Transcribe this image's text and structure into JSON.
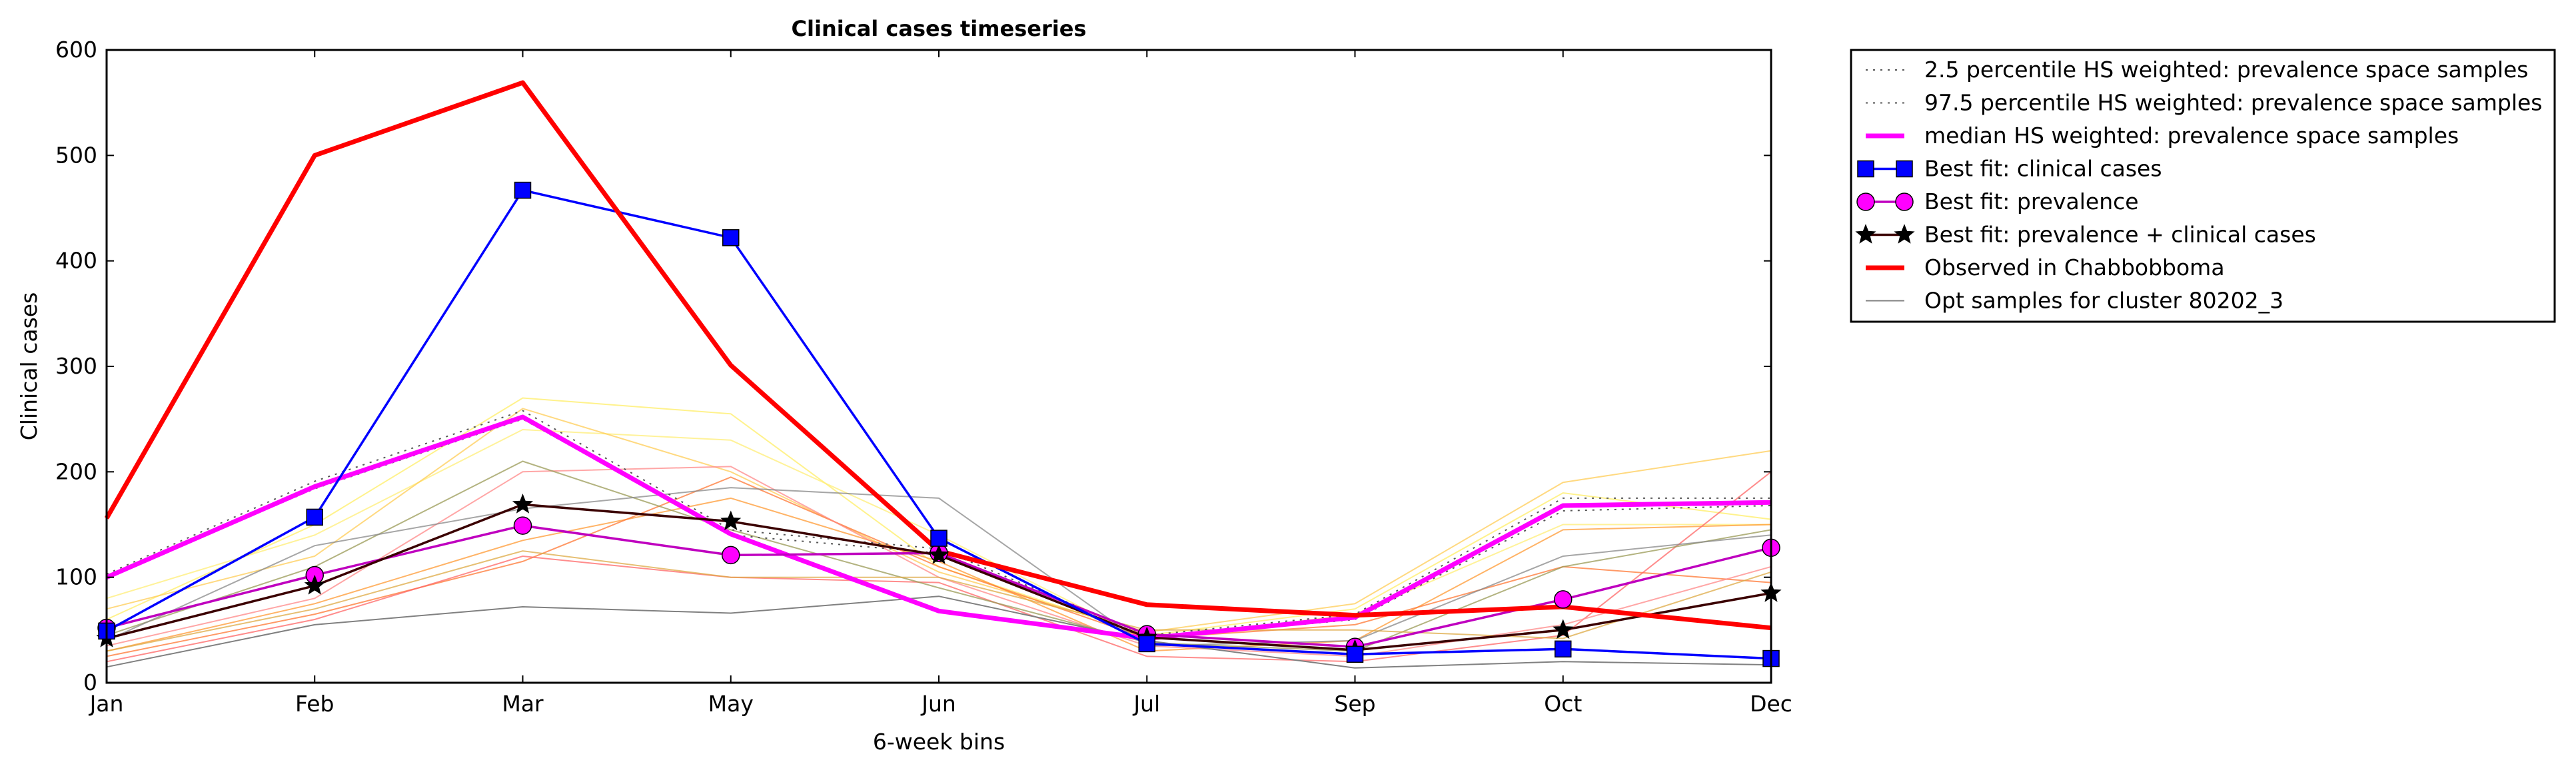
{
  "chart_data": {
    "type": "line",
    "title": "Clinical cases timeseries",
    "xlabel": "6-week bins",
    "ylabel": "Clinical cases",
    "x_ticks": [
      "Jan",
      "Feb",
      "Mar",
      "May",
      "Jun",
      "Jul",
      "Sep",
      "Oct",
      "Dec"
    ],
    "y_ticks": [
      0,
      100,
      200,
      300,
      400,
      500,
      600
    ],
    "ylim": [
      0,
      600
    ],
    "grid": false,
    "legend_position": "outside-right-top",
    "series": [
      {
        "name": "2.5 percentile HS weighted: prevalence space samples",
        "style": "dotted",
        "color": "#555555",
        "values": [
          100,
          184,
          250,
          140,
          123,
          42,
          60,
          163,
          168
        ]
      },
      {
        "name": "97.5 percentile HS weighted: prevalence space samples",
        "style": "dotted",
        "color": "#555555",
        "values": [
          103,
          191,
          258,
          145,
          127,
          45,
          65,
          175,
          175
        ]
      },
      {
        "name": "median HS weighted: prevalence space samples",
        "style": "solid",
        "color": "#ff00ff",
        "values": [
          100,
          186,
          252,
          141,
          68,
          42,
          62,
          168,
          171
        ]
      },
      {
        "name": "Best fit: clinical cases",
        "style": "solid",
        "color": "#0000ff",
        "marker": "square",
        "values": [
          49,
          157,
          467,
          422,
          137,
          37,
          27,
          32,
          23
        ]
      },
      {
        "name": "Best fit: prevalence",
        "style": "solid",
        "color": "#bf00bf",
        "marker": "circle",
        "marker_color": "#ff00ff",
        "values": [
          52,
          102,
          149,
          121,
          123,
          46,
          34,
          79,
          128
        ]
      },
      {
        "name": "Best fit: prevalence + clinical cases",
        "style": "solid",
        "color": "#3a0000",
        "marker": "star",
        "marker_color": "#000000",
        "values": [
          42,
          92,
          169,
          153,
          121,
          43,
          31,
          50,
          85
        ]
      },
      {
        "name": "Observed in Chabbobboma",
        "style": "solid",
        "color": "#ff0000",
        "values": [
          156,
          500,
          569,
          301,
          125,
          74,
          64,
          72,
          52
        ]
      },
      {
        "name": "Opt samples for cluster 80202_3",
        "style": "thin",
        "color": "#808080",
        "values": [
          15,
          55,
          72,
          66,
          82,
          40,
          14,
          20,
          17
        ]
      }
    ],
    "background_samples": [
      {
        "color": "#ffee66",
        "values": [
          60,
          150,
          270,
          255,
          110,
          45,
          70,
          180,
          155
        ]
      },
      {
        "color": "#ffee77",
        "values": [
          80,
          140,
          240,
          230,
          140,
          40,
          65,
          150,
          150
        ]
      },
      {
        "color": "#ffcc55",
        "values": [
          70,
          120,
          260,
          200,
          105,
          48,
          75,
          190,
          220
        ]
      },
      {
        "color": "#ff9933",
        "values": [
          30,
          75,
          135,
          175,
          115,
          30,
          40,
          145,
          150
        ]
      },
      {
        "color": "#ff7733",
        "values": [
          25,
          65,
          115,
          195,
          110,
          42,
          55,
          110,
          95
        ]
      },
      {
        "color": "#ff6666",
        "values": [
          20,
          60,
          120,
          100,
          95,
          25,
          20,
          45,
          200
        ]
      },
      {
        "color": "#ff8888",
        "values": [
          35,
          80,
          200,
          205,
          100,
          35,
          25,
          55,
          110
        ]
      },
      {
        "color": "#999955",
        "values": [
          45,
          110,
          210,
          145,
          90,
          38,
          30,
          110,
          145
        ]
      },
      {
        "color": "#888888",
        "values": [
          40,
          130,
          165,
          185,
          175,
          35,
          40,
          120,
          140
        ]
      },
      {
        "color": "#ddaa44",
        "values": [
          30,
          70,
          125,
          100,
          100,
          50,
          50,
          42,
          105
        ]
      }
    ]
  }
}
